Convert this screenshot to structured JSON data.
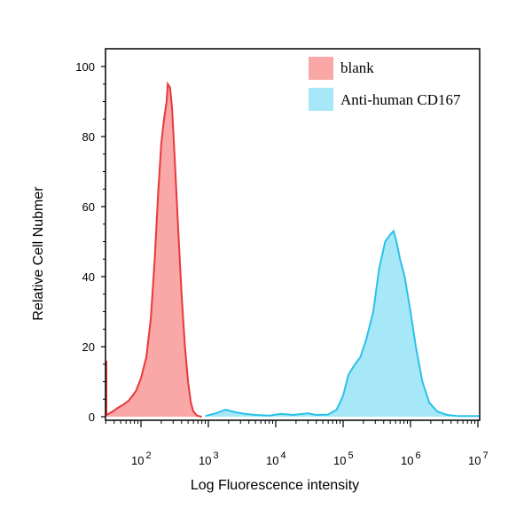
{
  "chart_data": {
    "type": "area",
    "xlabel": "Log Fluorescence intensity",
    "ylabel": "Relative Cell Nubmer",
    "xscale": "log",
    "xlim": [
      25,
      13000000.0
    ],
    "ylim": [
      0,
      100
    ],
    "x_ticks": [
      {
        "value": 100,
        "base": "10",
        "exp": "2"
      },
      {
        "value": 1000,
        "base": "10",
        "exp": "3"
      },
      {
        "value": 10000,
        "base": "10",
        "exp": "4"
      },
      {
        "value": 100000,
        "base": "10",
        "exp": "5"
      },
      {
        "value": 1000000,
        "base": "10",
        "exp": "6"
      },
      {
        "value": 10000000,
        "base": "10",
        "exp": "7"
      }
    ],
    "y_ticks": [
      {
        "value": 0,
        "label": "0"
      },
      {
        "value": 20,
        "label": "20"
      },
      {
        "value": 40,
        "label": "40"
      },
      {
        "value": 60,
        "label": "60"
      },
      {
        "value": 80,
        "label": "80"
      },
      {
        "value": 100,
        "label": "100"
      }
    ],
    "legend_position": "top-right",
    "series": [
      {
        "name": "blank",
        "fill": "#f9a7a7",
        "stroke": "#e8383c",
        "points": [
          [
            25,
            16
          ],
          [
            26,
            12
          ],
          [
            27,
            6
          ],
          [
            28,
            2
          ],
          [
            30,
            0.5
          ],
          [
            33,
            0.8
          ],
          [
            38,
            1.5
          ],
          [
            45,
            2.5
          ],
          [
            55,
            3.5
          ],
          [
            65,
            4.5
          ],
          [
            75,
            6
          ],
          [
            85,
            7.5
          ],
          [
            100,
            11
          ],
          [
            120,
            17
          ],
          [
            140,
            28
          ],
          [
            160,
            45
          ],
          [
            180,
            64
          ],
          [
            200,
            78
          ],
          [
            220,
            85
          ],
          [
            240,
            90
          ],
          [
            250,
            95
          ],
          [
            270,
            94
          ],
          [
            290,
            88
          ],
          [
            320,
            72
          ],
          [
            360,
            52
          ],
          [
            400,
            35
          ],
          [
            450,
            20
          ],
          [
            500,
            10
          ],
          [
            550,
            4
          ],
          [
            600,
            1.5
          ],
          [
            680,
            0.3
          ],
          [
            800,
            0
          ]
        ]
      },
      {
        "name": "Anti-human CD167",
        "fill": "#a6e8f8",
        "stroke": "#2cc1ea",
        "points": [
          [
            900,
            0.2
          ],
          [
            1300,
            1
          ],
          [
            1800,
            2
          ],
          [
            2500,
            1.3
          ],
          [
            3500,
            0.8
          ],
          [
            5000,
            0.5
          ],
          [
            8000,
            0.3
          ],
          [
            12000,
            0.8
          ],
          [
            18000,
            0.5
          ],
          [
            30000,
            1
          ],
          [
            40000,
            0.5
          ],
          [
            60000,
            0.6
          ],
          [
            80000,
            2
          ],
          [
            100000,
            6
          ],
          [
            120000,
            12
          ],
          [
            150000,
            15
          ],
          [
            180000,
            17
          ],
          [
            220000,
            22
          ],
          [
            280000,
            30
          ],
          [
            340000,
            42
          ],
          [
            420000,
            50
          ],
          [
            500000,
            52
          ],
          [
            560000,
            53
          ],
          [
            620000,
            50
          ],
          [
            700000,
            45
          ],
          [
            820000,
            40
          ],
          [
            1000000,
            30
          ],
          [
            1200000,
            20
          ],
          [
            1500000,
            10
          ],
          [
            1900000,
            4
          ],
          [
            2500000,
            1.5
          ],
          [
            3500000,
            0.5
          ],
          [
            5000000,
            0.2
          ],
          [
            12000000,
            0.2
          ]
        ]
      }
    ]
  }
}
